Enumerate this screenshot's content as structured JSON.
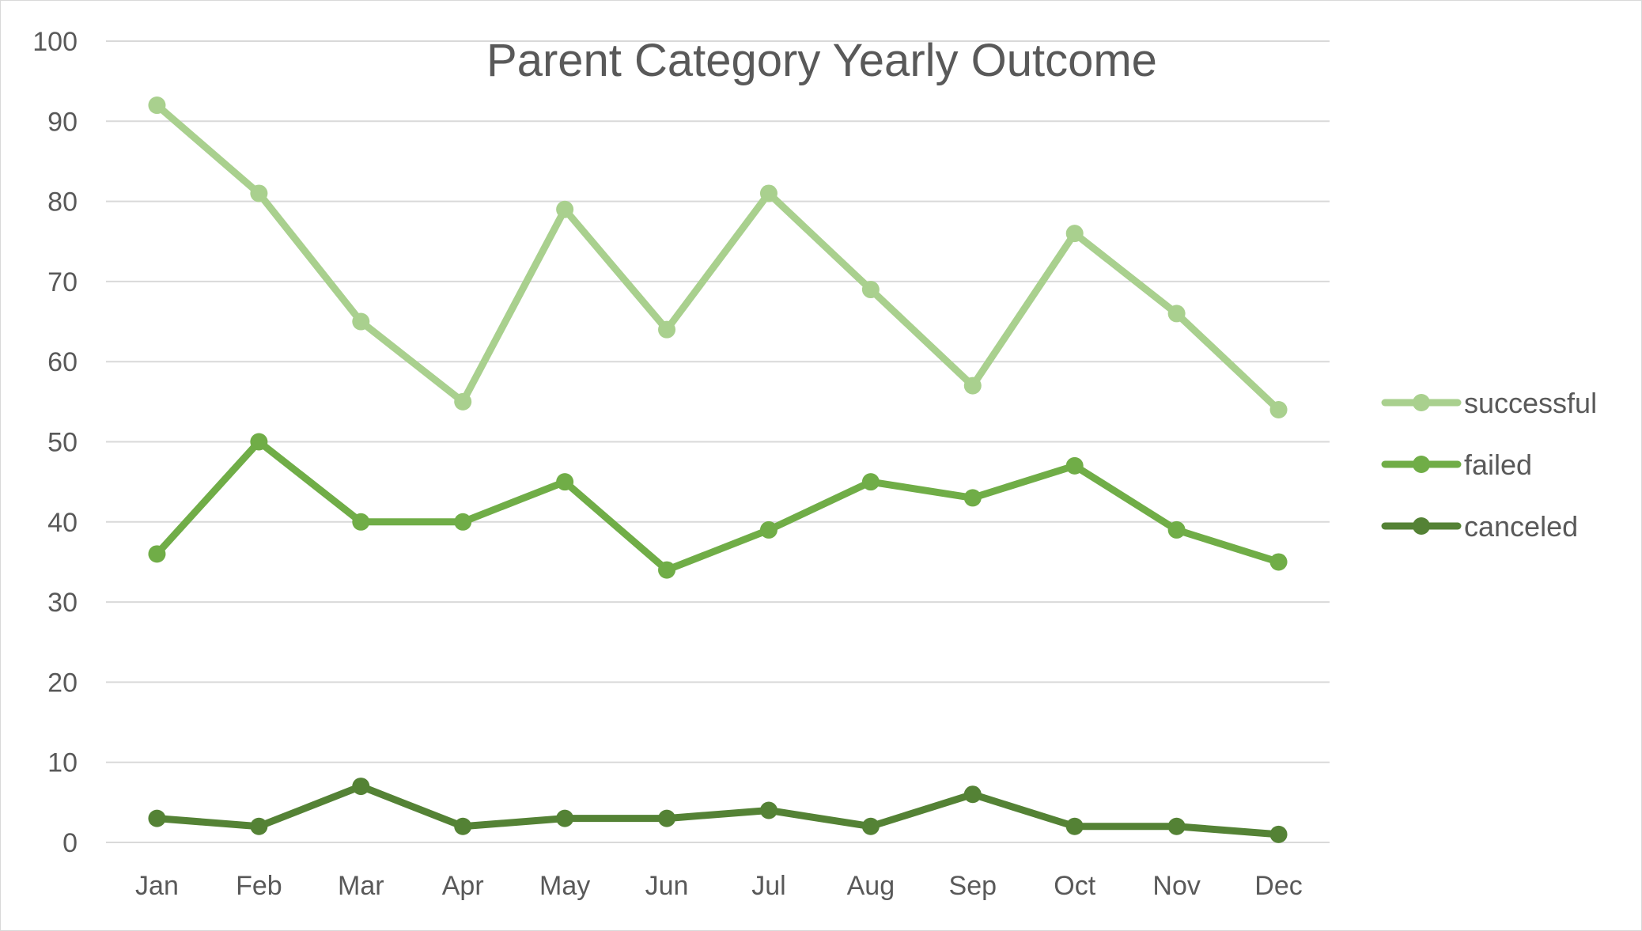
{
  "chart_data": {
    "type": "line",
    "title": "Parent Category Yearly Outcome",
    "xlabel": "",
    "ylabel": "",
    "categories": [
      "Jan",
      "Feb",
      "Mar",
      "Apr",
      "May",
      "Jun",
      "Jul",
      "Aug",
      "Sep",
      "Oct",
      "Nov",
      "Dec"
    ],
    "ylim": [
      0,
      100
    ],
    "yticks": [
      0,
      10,
      20,
      30,
      40,
      50,
      60,
      70,
      80,
      90,
      100
    ],
    "grid": true,
    "legend_position": "right",
    "series": [
      {
        "name": "successful",
        "color": "#a9d08e",
        "values": [
          92,
          81,
          65,
          55,
          79,
          64,
          81,
          69,
          57,
          76,
          66,
          54
        ]
      },
      {
        "name": "failed",
        "color": "#70ad47",
        "values": [
          36,
          50,
          40,
          40,
          45,
          34,
          39,
          45,
          43,
          47,
          39,
          35
        ]
      },
      {
        "name": "canceled",
        "color": "#548235",
        "values": [
          3,
          2,
          7,
          2,
          3,
          3,
          4,
          2,
          6,
          2,
          2,
          1
        ]
      }
    ]
  }
}
